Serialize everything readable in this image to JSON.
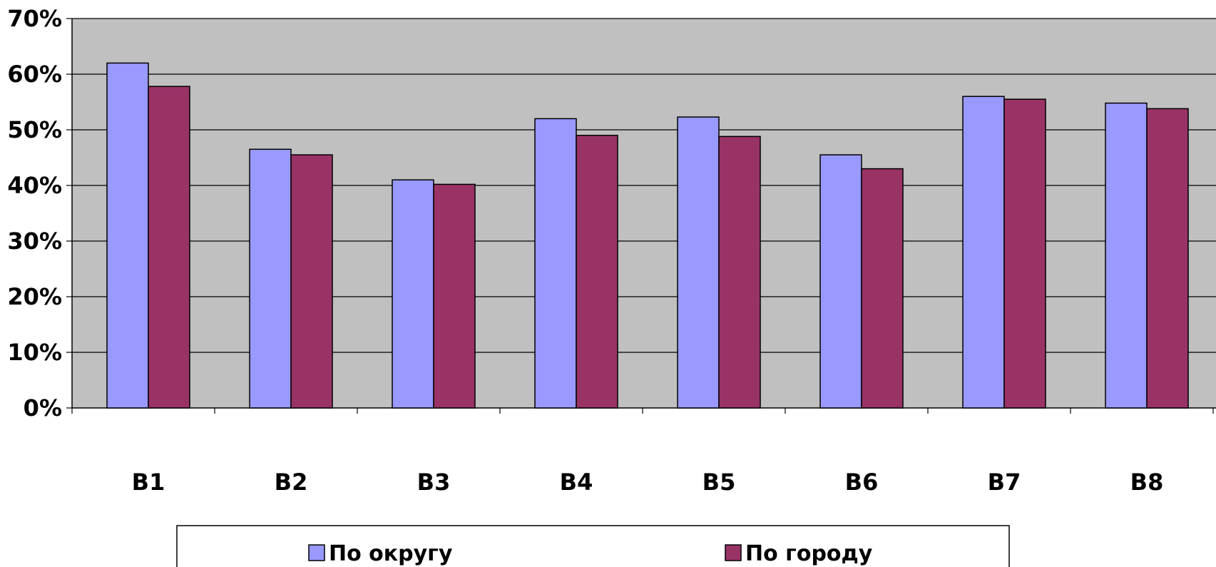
{
  "chart_data": {
    "type": "bar",
    "title": "",
    "xlabel": "",
    "ylabel": "",
    "categories": [
      "В1",
      "В2",
      "В3",
      "В4",
      "В5",
      "В6",
      "В7",
      "В8"
    ],
    "series": [
      {
        "name": "По округу",
        "color": "#9999ff",
        "values": [
          62,
          46.5,
          41,
          52,
          52.3,
          45.5,
          56,
          54.8
        ]
      },
      {
        "name": "По городу",
        "color": "#993366",
        "values": [
          57.8,
          45.5,
          40.2,
          49,
          48.8,
          43,
          55.5,
          53.8
        ]
      }
    ],
    "ylim": [
      0,
      70
    ],
    "yticks": [
      0,
      10,
      20,
      30,
      40,
      50,
      60,
      70
    ],
    "ytick_labels": [
      "0%",
      "10%",
      "20%",
      "30%",
      "40%",
      "50%",
      "60%",
      "70%"
    ],
    "grid": true,
    "plot_background": "#c0c0c0",
    "legend_position": "bottom"
  }
}
